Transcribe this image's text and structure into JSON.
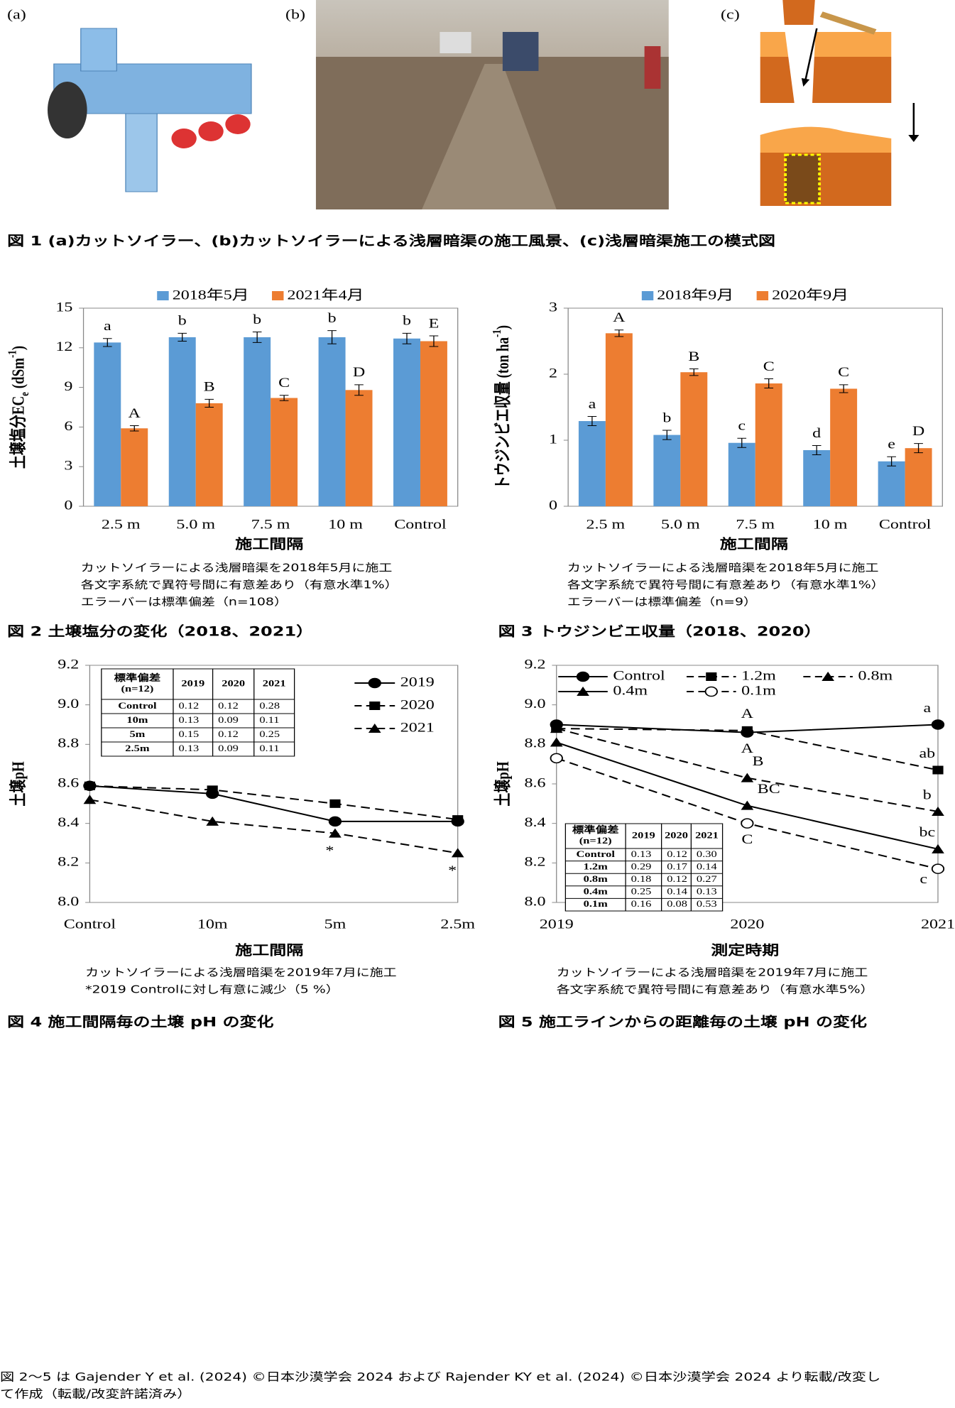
{
  "figure1": {
    "labels": [
      "(a)",
      "(b)",
      "(c)"
    ],
    "caption": "図 1 (a)カットソイラー、(b)カットソイラーによる浅層暗渠の施工風景、(c)浅層暗渠施工の模式図"
  },
  "chart_data": [
    {
      "type": "bar",
      "categories": [
        "2.5 m",
        "5.0 m",
        "7.5 m",
        "10 m",
        "Control"
      ],
      "series": [
        {
          "name": "2018年5月",
          "color": "#5b9bd5",
          "values": [
            12.4,
            12.8,
            12.8,
            12.8,
            12.7
          ],
          "errors": [
            0.3,
            0.3,
            0.4,
            0.5,
            0.4
          ],
          "letters": [
            "a",
            "b",
            "b",
            "b",
            "b"
          ]
        },
        {
          "name": "2021年4月",
          "color": "#ed7d31",
          "values": [
            5.9,
            7.8,
            8.2,
            8.8,
            12.5
          ],
          "errors": [
            0.2,
            0.3,
            0.2,
            0.4,
            0.4
          ],
          "letters": [
            "A",
            "B",
            "C",
            "D",
            "E"
          ]
        }
      ],
      "ylim": [
        0,
        15
      ],
      "yticks": [
        0,
        3,
        6,
        9,
        12,
        15
      ],
      "y_label": [
        "土壌塩分EC",
        "e",
        " (dSm",
        "-1",
        ")"
      ],
      "x_label": "施工間隔",
      "notes": [
        "カットソイラーによる浅層暗渠を2018年5月に施工",
        "各文字系統で異符号間に有意差あり（有意水準1%）",
        "エラーバーは標準偏差（n=108）"
      ],
      "caption": "図 2  土壌塩分の変化（2018、2021）"
    },
    {
      "type": "bar",
      "categories": [
        "2.5 m",
        "5.0 m",
        "7.5 m",
        "10 m",
        "Control"
      ],
      "series": [
        {
          "name": "2018年9月",
          "color": "#5b9bd5",
          "values": [
            1.29,
            1.08,
            0.96,
            0.85,
            0.68
          ],
          "errors": [
            0.07,
            0.07,
            0.07,
            0.07,
            0.07
          ],
          "letters": [
            "a",
            "b",
            "c",
            "d",
            "e"
          ]
        },
        {
          "name": "2020年9月",
          "color": "#ed7d31",
          "values": [
            2.62,
            2.03,
            1.86,
            1.78,
            0.88
          ],
          "errors": [
            0.05,
            0.05,
            0.07,
            0.06,
            0.07
          ],
          "letters": [
            "A",
            "B",
            "C",
            "C",
            "D"
          ]
        }
      ],
      "ylim": [
        0,
        3
      ],
      "yticks": [
        0,
        1,
        2,
        3
      ],
      "y_label": [
        "トウジンビエ収量 (ton ha",
        "-1",
        ")"
      ],
      "x_label": "施工間隔",
      "notes": [
        "カットソイラーによる浅層暗渠を2018年5月に施工",
        "各文字系統で異符号間に有意差あり（有意水準1%）",
        "エラーバーは標準偏差（n=9）"
      ],
      "caption": "図 3  トウジンビエ収量（2018、2020）"
    },
    {
      "type": "line",
      "categories": [
        "Control",
        "10m",
        "5m",
        "2.5m"
      ],
      "series": [
        {
          "name": "2019",
          "color": "#000000",
          "dashed": false,
          "marker": "circle",
          "values": [
            8.59,
            8.55,
            8.41,
            8.41
          ]
        },
        {
          "name": "2020",
          "color": "#000000",
          "dashed": true,
          "marker": "square",
          "values": [
            8.59,
            8.57,
            8.5,
            8.42
          ]
        },
        {
          "name": "2021",
          "color": "#000000",
          "dashed": true,
          "marker": "triangle",
          "values": [
            8.52,
            8.41,
            8.35,
            8.25
          ],
          "letters": [
            null,
            null,
            "*",
            "*"
          ]
        }
      ],
      "ylim": [
        8,
        9.2
      ],
      "yticks": [
        {
          "value": 8,
          "label": "8.0"
        },
        8.2,
        8.4,
        8.6,
        8.8,
        {
          "value": 9,
          "label": "9.0"
        },
        9.2
      ],
      "y_label": [
        "土壌pH"
      ],
      "x_label": "施工間隔",
      "table": {
        "header": [
          [
            "標準偏差",
            "(n=12)"
          ],
          "2019",
          "2020",
          "2021"
        ],
        "rows": [
          [
            "Control",
            "0.12",
            "0.12",
            "0.28"
          ],
          [
            "10m",
            "0.13",
            "0.09",
            "0.11"
          ],
          [
            "5m",
            "0.15",
            "0.12",
            "0.25"
          ],
          [
            "2.5m",
            "0.13",
            "0.09",
            "0.11"
          ]
        ]
      },
      "notes": [
        "カットソイラーによる浅層暗渠を2019年7月に施工",
        "*2019 Controlに対し有意に減少（5 %）"
      ],
      "caption": "図 4  施工間隔毎の土壌 pH の変化"
    },
    {
      "type": "line",
      "categories": [
        "2019",
        "2020",
        "2021"
      ],
      "series": [
        {
          "name": "Control",
          "color": "#000000",
          "dashed": false,
          "marker": "circle",
          "values": [
            8.9,
            8.86,
            8.9
          ],
          "letters": [
            null,
            "A",
            "a"
          ]
        },
        {
          "name": "1.2m",
          "color": "#000000",
          "dashed": true,
          "marker": "square",
          "values": [
            8.88,
            8.87,
            8.67
          ],
          "letters": [
            null,
            "A",
            "ab"
          ]
        },
        {
          "name": "0.8m",
          "color": "#000000",
          "dashed": true,
          "marker": "triangle",
          "values": [
            8.88,
            8.63,
            8.46
          ],
          "letters": [
            null,
            "B",
            "b"
          ]
        },
        {
          "name": "0.4m",
          "color": "#000000",
          "dashed": false,
          "marker": "triangle",
          "values": [
            8.81,
            8.49,
            8.27
          ],
          "letters": [
            null,
            "BC",
            "bc"
          ]
        },
        {
          "name": "0.1m",
          "color": "#000000",
          "dashed": true,
          "marker": "open-circle",
          "values": [
            8.73,
            8.4,
            8.17
          ],
          "letters": [
            null,
            "C",
            "c"
          ]
        }
      ],
      "ylim": [
        8,
        9.2
      ],
      "yticks": [
        {
          "value": 8,
          "label": "8.0"
        },
        8.2,
        8.4,
        8.6,
        8.8,
        {
          "value": 9,
          "label": "9.0"
        },
        9.2
      ],
      "y_label": [
        "土壌pH"
      ],
      "x_label": "測定時期",
      "table": {
        "header": [
          [
            "標準偏差",
            "(n=12)"
          ],
          "2019",
          "2020",
          "2021"
        ],
        "rows": [
          [
            "Control",
            "0.13",
            "0.12",
            "0.30"
          ],
          [
            "1.2m",
            "0.29",
            "0.17",
            "0.14"
          ],
          [
            "0.8m",
            "0.18",
            "0.12",
            "0.27"
          ],
          [
            "0.4m",
            "0.25",
            "0.14",
            "0.13"
          ],
          [
            "0.1m",
            "0.16",
            "0.08",
            "0.53"
          ]
        ]
      },
      "notes": [
        "カットソイラーによる浅層暗渠を2019年7月に施工",
        "各文字系統で異符号間に有意差あり（有意水準5%）"
      ],
      "caption": "図 5  施工ラインからの距離毎の土壌 pH の変化"
    }
  ],
  "footer": [
    "図 2〜5 は Gajender Y et al. (2024) ©日本沙漠学会 2024 および Rajender KY et al. (2024) ©日本沙漠学会 2024 より転載/改変し",
    "て作成（転載/改変許諾済み）"
  ]
}
